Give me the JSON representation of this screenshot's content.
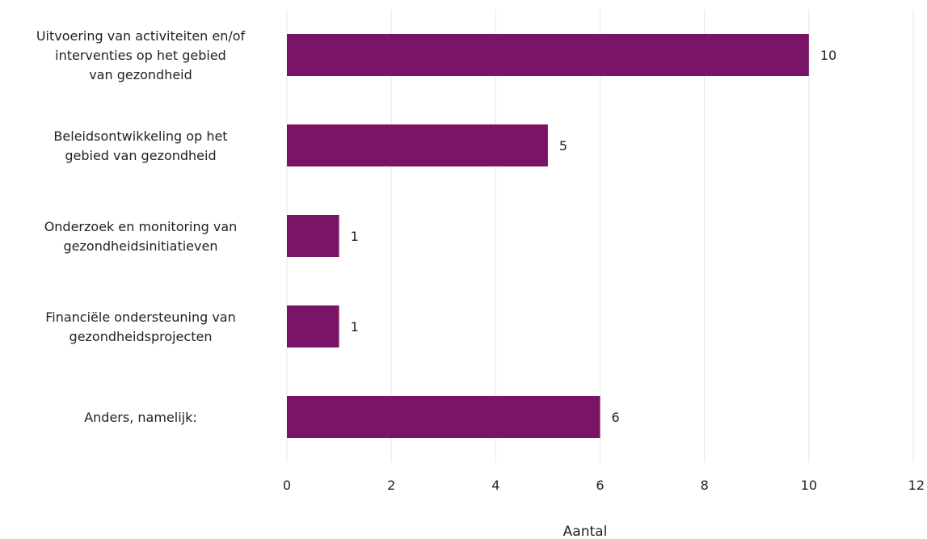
{
  "chart_data": {
    "type": "bar",
    "orientation": "horizontal",
    "categories": [
      "Uitvoering van activiteiten en/of interventies op het gebied van gezondheid",
      "Beleidsontwikkeling op het gebied van gezondheid",
      "Onderzoek en monitoring van gezondheidsinitiatieven",
      "Financiële ondersteuning van gezondheidsprojecten",
      "Anders, namelijk:"
    ],
    "category_lines": [
      [
        "Uitvoering van activiteiten en/of",
        "interventies op het gebied",
        "van gezondheid"
      ],
      [
        "Beleidsontwikkeling op het",
        "gebied van gezondheid"
      ],
      [
        "Onderzoek en monitoring van",
        "gezondheidsinitiatieven"
      ],
      [
        "Financiële ondersteuning van",
        "gezondheidsprojecten"
      ],
      [
        "Anders, namelijk:"
      ]
    ],
    "values": [
      10,
      5,
      1,
      1,
      6
    ],
    "data_labels": [
      "10",
      "5",
      "1",
      "1",
      "6"
    ],
    "xlabel": "Aantal",
    "ylabel": "",
    "xlim": [
      0,
      12
    ],
    "xticks": [
      0,
      2,
      4,
      6,
      8,
      10,
      12
    ],
    "xtick_labels": [
      "0",
      "2",
      "4",
      "6",
      "8",
      "10",
      "12"
    ],
    "grid": "vertical",
    "legend": "none",
    "bar_color": "#7a1466"
  }
}
